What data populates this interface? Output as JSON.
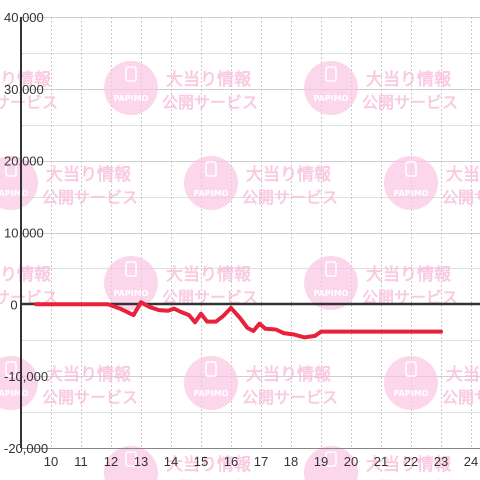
{
  "chart_data": {
    "type": "line",
    "xlim": [
      9.5,
      24
    ],
    "ylim": [
      -20000,
      40000
    ],
    "x_ticks": [
      10,
      11,
      12,
      13,
      14,
      15,
      16,
      17,
      18,
      19,
      20,
      21,
      22,
      23,
      24
    ],
    "y_ticks": [
      {
        "value": 40000,
        "label": "40,000"
      },
      {
        "value": 30000,
        "label": "30,000"
      },
      {
        "value": 20000,
        "label": "20,000"
      },
      {
        "value": 10000,
        "label": "10,000"
      },
      {
        "value": 0,
        "label": "0"
      },
      {
        "value": -10000,
        "label": "-10,000"
      },
      {
        "value": -20000,
        "label": "-20,000"
      }
    ],
    "grid": true,
    "line_color": "#e8223a",
    "series": [
      {
        "x": [
          9.5,
          10,
          11,
          11.9,
          12.3,
          12.75,
          13.0,
          13.3,
          13.6,
          13.9,
          14.1,
          14.3,
          14.6,
          14.8,
          15.0,
          15.2,
          15.5,
          15.75,
          16.0,
          16.3,
          16.55,
          16.75,
          16.95,
          17.15,
          17.5,
          17.75,
          18.1,
          18.45,
          18.8,
          19.0,
          20,
          21,
          22,
          23.0
        ],
        "y": [
          0,
          0,
          0,
          0,
          -600,
          -1500,
          300,
          -400,
          -800,
          -900,
          -600,
          -1000,
          -1500,
          -2500,
          -1300,
          -2400,
          -2400,
          -1600,
          -500,
          -1900,
          -3300,
          -3700,
          -2700,
          -3400,
          -3500,
          -4000,
          -4200,
          -4600,
          -4400,
          -3800,
          -3800,
          -3800,
          -3800,
          -3800
        ]
      }
    ]
  },
  "watermark": {
    "line1": "大当り情報",
    "line2": "公開サービス",
    "logo": "PAPIMO",
    "color": "#f7b9d8"
  }
}
